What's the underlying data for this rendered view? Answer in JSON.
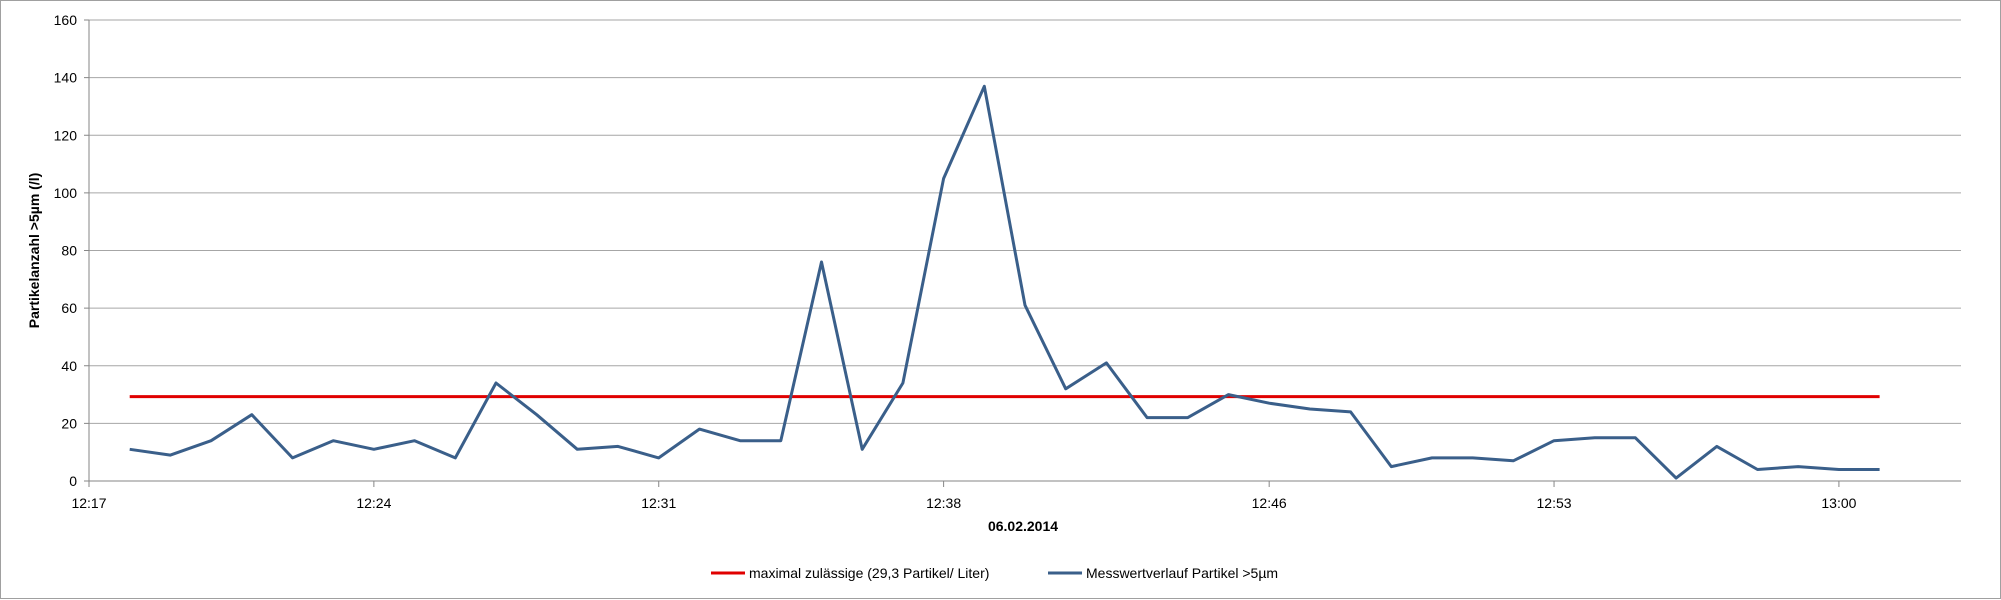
{
  "chart_data": {
    "type": "line",
    "xlabel": "06.02.2014",
    "ylabel": "Partikelanzahl >5µm (/l)",
    "ylim": [
      0,
      160
    ],
    "y_ticks": [
      "0",
      "20",
      "40",
      "60",
      "80",
      "100",
      "120",
      "140",
      "160"
    ],
    "x_ticks": [
      "12:17",
      "12:24",
      "12:31",
      "12:38",
      "12:46",
      "12:53",
      "13:00"
    ],
    "x_range": [
      "12:17",
      "13:03"
    ],
    "grid": "horizontal",
    "legend_position": "bottom",
    "x": [
      "12:18",
      "12:19",
      "12:20",
      "12:21",
      "12:22",
      "12:23",
      "12:24",
      "12:25",
      "12:26",
      "12:27",
      "12:28",
      "12:29",
      "12:30",
      "12:31",
      "12:32",
      "12:33",
      "12:34",
      "12:35",
      "12:36",
      "12:37",
      "12:38",
      "12:39",
      "12:40",
      "12:41",
      "12:42",
      "12:43",
      "12:44",
      "12:45",
      "12:46",
      "12:47",
      "12:48",
      "12:49",
      "12:50",
      "12:51",
      "12:52",
      "12:53",
      "12:54",
      "12:55",
      "12:56",
      "12:57",
      "12:58",
      "12:59",
      "13:00",
      "13:01"
    ],
    "series": [
      {
        "name": "maximal zulässige (29,3 Partikel/ Liter)",
        "color": "#e00000",
        "values": [
          29.3,
          29.3,
          29.3,
          29.3,
          29.3,
          29.3,
          29.3,
          29.3,
          29.3,
          29.3,
          29.3,
          29.3,
          29.3,
          29.3,
          29.3,
          29.3,
          29.3,
          29.3,
          29.3,
          29.3,
          29.3,
          29.3,
          29.3,
          29.3,
          29.3,
          29.3,
          29.3,
          29.3,
          29.3,
          29.3,
          29.3,
          29.3,
          29.3,
          29.3,
          29.3,
          29.3,
          29.3,
          29.3,
          29.3,
          29.3,
          29.3,
          29.3,
          29.3,
          29.3
        ]
      },
      {
        "name": "Messwertverlauf Partikel >5µm",
        "color": "#3a5f8a",
        "values": [
          11,
          9,
          14,
          23,
          8,
          14,
          11,
          14,
          8,
          34,
          23,
          11,
          12,
          8,
          18,
          14,
          14,
          76,
          11,
          34,
          105,
          137,
          61,
          32,
          41,
          22,
          22,
          30,
          27,
          25,
          24,
          5,
          8,
          8,
          7,
          14,
          15,
          15,
          1,
          12,
          4,
          5,
          4,
          4
        ]
      }
    ]
  }
}
